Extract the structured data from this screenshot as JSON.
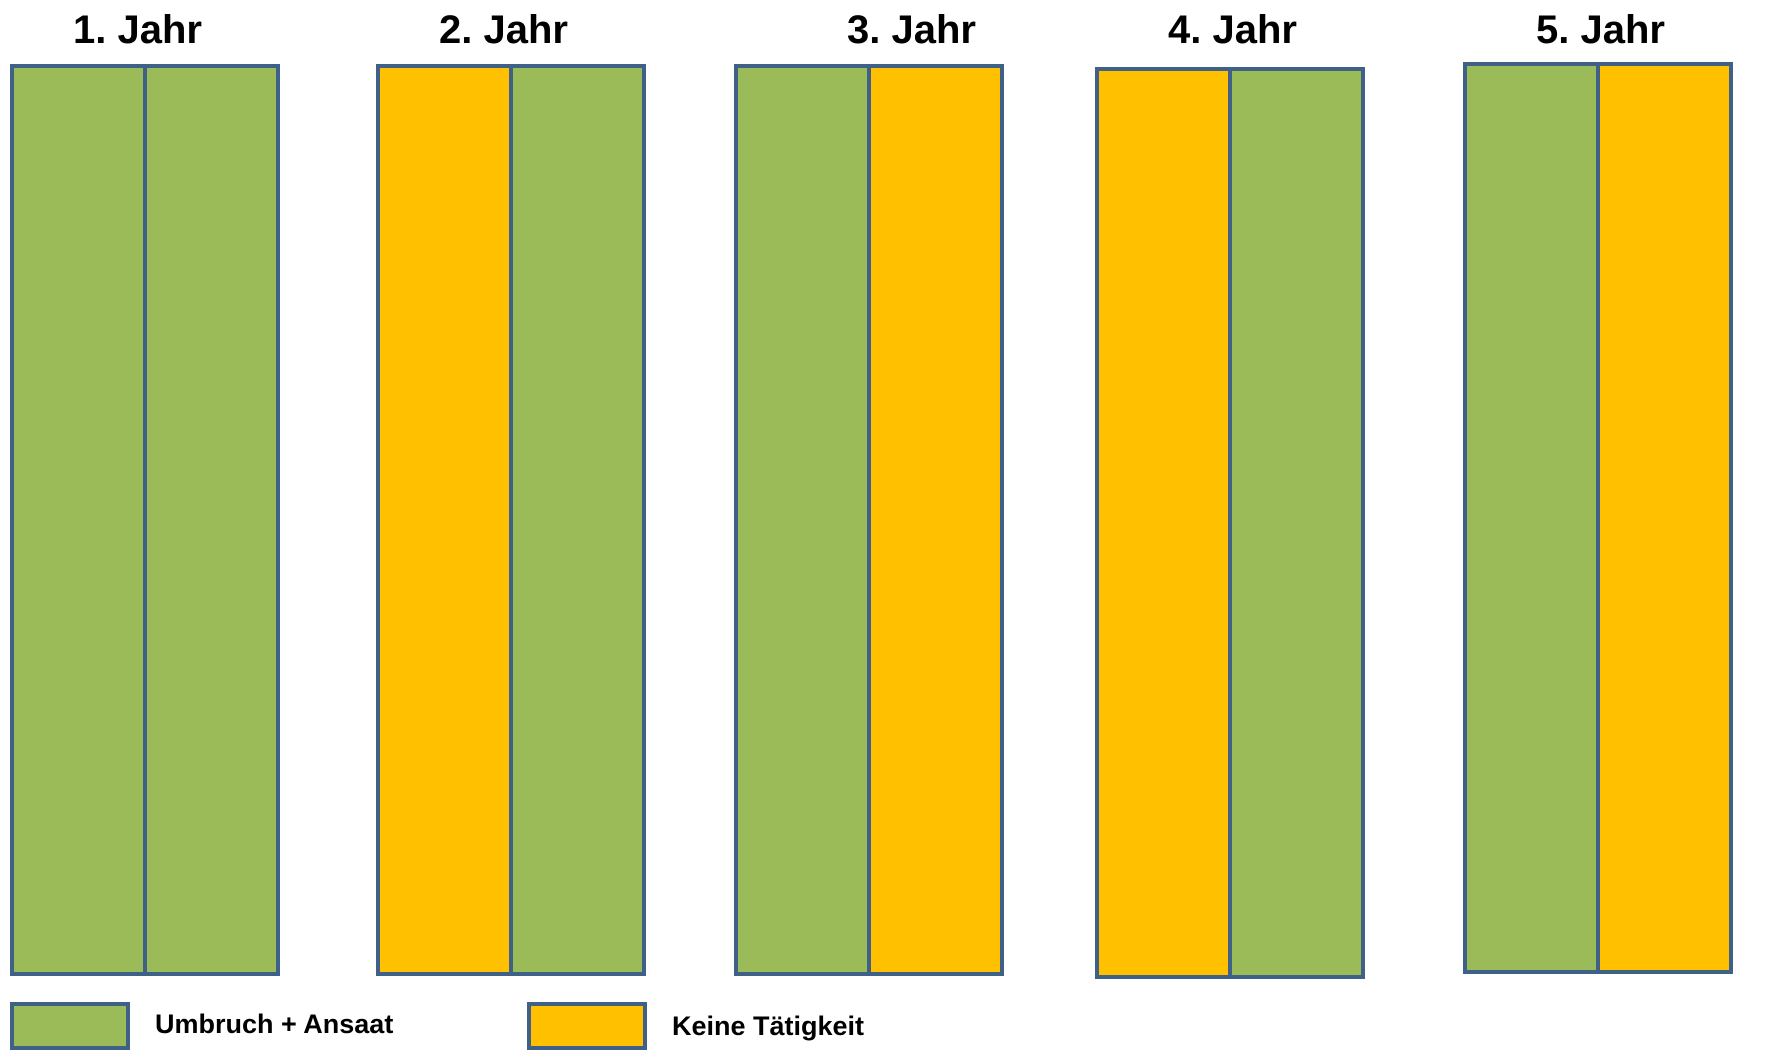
{
  "colors": {
    "green": "#9bbb59",
    "yellow": "#ffc000",
    "border": "#3f6188"
  },
  "years": [
    {
      "label": "1. Jahr",
      "strips": [
        "green",
        "green"
      ]
    },
    {
      "label": "2. Jahr",
      "strips": [
        "yellow",
        "green"
      ]
    },
    {
      "label": "3. Jahr",
      "strips": [
        "green",
        "yellow"
      ]
    },
    {
      "label": "4. Jahr",
      "strips": [
        "yellow",
        "green"
      ]
    },
    {
      "label": "5. Jahr",
      "strips": [
        "green",
        "yellow"
      ]
    }
  ],
  "legend": [
    {
      "label": "Umbruch + Ansaat",
      "color": "green"
    },
    {
      "label": "Keine Tätigkeit",
      "color": "yellow"
    }
  ]
}
